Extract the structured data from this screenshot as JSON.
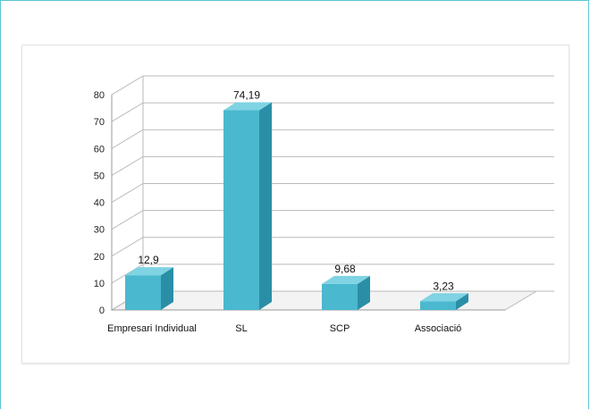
{
  "chart_data": {
    "type": "bar",
    "style": "3d-column",
    "categories": [
      "Empresari Individual",
      "SL",
      "SCP",
      "Associació"
    ],
    "values": [
      12.9,
      74.19,
      9.68,
      3.23
    ],
    "data_labels": [
      "12,9",
      "74,19",
      "9,68",
      "3,23"
    ],
    "yticks": [
      "0",
      "10",
      "20",
      "30",
      "40",
      "50",
      "60",
      "70",
      "80"
    ],
    "ylim": [
      0,
      80
    ],
    "grid": true,
    "legend": "none",
    "title": "",
    "xlabel": "",
    "ylabel": ""
  },
  "colors": {
    "bar_front": "#4ab8cf",
    "bar_top": "#7fd3e2",
    "bar_side": "#2a8fa6",
    "frame": "#5bc7d6",
    "grid": "#b9b9b9"
  }
}
